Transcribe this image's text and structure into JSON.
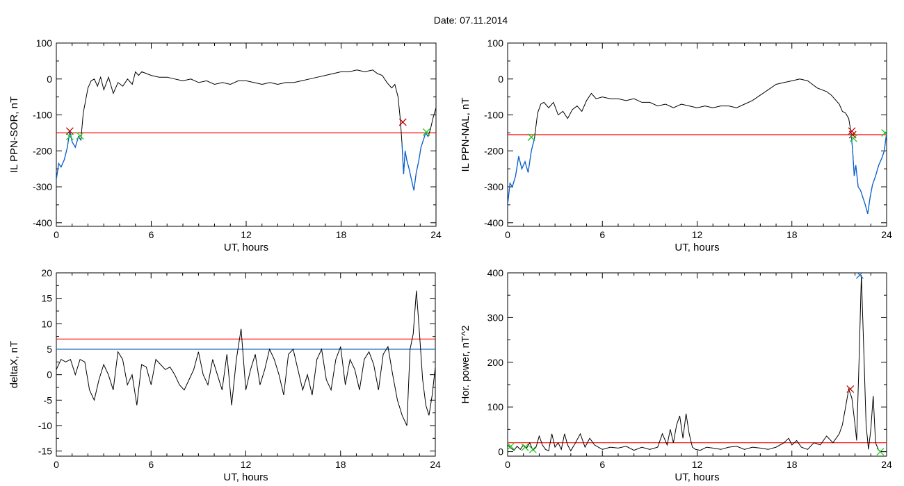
{
  "figure_title": "Date:  07.11.2014",
  "colors": {
    "trace": "#000000",
    "threshold_red": "#ff0000",
    "threshold_blue": "#1f6fbf",
    "event_red": "#c00000",
    "event_green": "#1ec81e",
    "event_blue": "#1f6fbf",
    "disturbed": "#0a64d2"
  },
  "chart_data": [
    {
      "type": "line",
      "id": "il-sor",
      "xlabel": "UT, hours",
      "ylabel": "IL PPN-SOR, nT",
      "xlim": [
        0,
        24
      ],
      "ylim": [
        -410,
        100
      ],
      "xticks": [
        0,
        6,
        12,
        18,
        24
      ],
      "yticks": [
        -400,
        -300,
        -200,
        -100,
        0,
        100
      ],
      "threshold_red": -150,
      "series": [
        {
          "values_x": [
            0,
            0.15,
            0.3,
            0.5,
            0.7,
            0.85,
            1.0,
            1.2,
            1.4,
            1.55,
            1.7,
            1.85,
            2.0,
            2.2,
            2.4,
            2.6,
            2.8,
            3.0,
            3.3,
            3.6,
            3.9,
            4.2,
            4.5,
            4.8,
            5.0,
            5.2,
            5.4,
            5.7,
            6.0,
            6.5,
            7.0,
            7.5,
            8.0,
            8.5,
            9.0,
            9.5,
            10.0,
            10.5,
            11.0,
            11.5,
            12.0,
            12.5,
            13.0,
            13.5,
            14.0,
            14.5,
            15.0,
            15.5,
            16.0,
            16.5,
            17.0,
            17.5,
            18.0,
            18.5,
            19.0,
            19.5,
            20.0,
            20.3,
            20.6,
            20.9,
            21.2,
            21.4,
            21.6,
            21.75,
            21.85,
            21.95,
            22.05,
            22.15,
            22.3,
            22.45,
            22.6,
            22.75,
            22.9,
            23.05,
            23.2,
            23.35,
            23.5,
            23.65,
            23.8,
            24.0
          ],
          "values_y": [
            -280,
            -235,
            -245,
            -225,
            -190,
            -145,
            -175,
            -190,
            -160,
            -170,
            -95,
            -60,
            -25,
            -5,
            0,
            -20,
            5,
            -30,
            5,
            -40,
            -10,
            -20,
            0,
            -15,
            20,
            10,
            20,
            15,
            10,
            5,
            5,
            0,
            -5,
            0,
            -10,
            -5,
            -15,
            -10,
            -15,
            -5,
            -5,
            -10,
            -15,
            -10,
            -15,
            -10,
            -10,
            -5,
            0,
            5,
            10,
            15,
            20,
            20,
            25,
            20,
            25,
            15,
            10,
            -10,
            -25,
            -15,
            -50,
            -115,
            -180,
            -265,
            -200,
            -225,
            -250,
            -280,
            -310,
            -260,
            -230,
            -190,
            -170,
            -150,
            -160,
            -140,
            -110,
            -80
          ]
        }
      ],
      "markers": [
        {
          "x": 0.85,
          "y": -145,
          "kind": "start"
        },
        {
          "x": 21.9,
          "y": -120,
          "kind": "start"
        },
        {
          "x": 0.85,
          "y": -160,
          "kind": "end"
        },
        {
          "x": 1.5,
          "y": -158,
          "kind": "end"
        },
        {
          "x": 23.4,
          "y": -148,
          "kind": "end"
        }
      ]
    },
    {
      "type": "line",
      "id": "il-nal",
      "xlabel": "UT, hours",
      "ylabel": "IL PPN-NAL, nT",
      "xlim": [
        0,
        24
      ],
      "ylim": [
        -410,
        100
      ],
      "xticks": [
        0,
        6,
        12,
        18,
        24
      ],
      "yticks": [
        -400,
        -300,
        -200,
        -100,
        0,
        100
      ],
      "threshold_red": -155,
      "series": [
        {
          "values_x": [
            0,
            0.15,
            0.3,
            0.5,
            0.7,
            0.9,
            1.1,
            1.3,
            1.5,
            1.7,
            1.9,
            2.1,
            2.3,
            2.6,
            2.9,
            3.2,
            3.5,
            3.8,
            4.1,
            4.4,
            4.7,
            5.0,
            5.3,
            5.6,
            6.0,
            6.5,
            7.0,
            7.5,
            8.0,
            8.5,
            9.0,
            9.5,
            10.0,
            10.5,
            11.0,
            11.5,
            12.0,
            12.5,
            13.0,
            13.5,
            14.0,
            14.5,
            15.0,
            15.5,
            16.0,
            16.5,
            17.0,
            17.5,
            18.0,
            18.5,
            19.0,
            19.3,
            19.6,
            19.9,
            20.2,
            20.5,
            20.8,
            21.0,
            21.2,
            21.4,
            21.6,
            21.75,
            21.85,
            21.95,
            22.05,
            22.2,
            22.35,
            22.5,
            22.65,
            22.8,
            22.95,
            23.1,
            23.3,
            23.5,
            23.7,
            23.85,
            24.0
          ],
          "values_y": [
            -350,
            -290,
            -300,
            -270,
            -215,
            -250,
            -230,
            -260,
            -200,
            -165,
            -95,
            -70,
            -65,
            -80,
            -65,
            -100,
            -90,
            -110,
            -85,
            -75,
            -90,
            -60,
            -40,
            -55,
            -50,
            -55,
            -55,
            -60,
            -55,
            -65,
            -65,
            -75,
            -70,
            -80,
            -70,
            -75,
            -80,
            -75,
            -80,
            -75,
            -75,
            -80,
            -70,
            -60,
            -45,
            -30,
            -15,
            -10,
            -5,
            0,
            -5,
            -15,
            -25,
            -30,
            -35,
            -45,
            -60,
            -70,
            -90,
            -95,
            -110,
            -150,
            -200,
            -270,
            -240,
            -300,
            -310,
            -330,
            -350,
            -375,
            -330,
            -295,
            -270,
            -240,
            -220,
            -200,
            -150
          ]
        }
      ],
      "markers": [
        {
          "x": 21.8,
          "y": -145,
          "kind": "start"
        },
        {
          "x": 21.85,
          "y": -155,
          "kind": "start"
        },
        {
          "x": 1.5,
          "y": -162,
          "kind": "end"
        },
        {
          "x": 21.9,
          "y": -165,
          "kind": "end"
        },
        {
          "x": 23.9,
          "y": -150,
          "kind": "end"
        }
      ]
    },
    {
      "type": "line",
      "id": "deltax",
      "xlabel": "UT, hours",
      "ylabel": "deltaX, nT",
      "xlim": [
        0,
        24
      ],
      "ylim": [
        -16,
        20
      ],
      "xticks": [
        0,
        6,
        12,
        18,
        24
      ],
      "yticks": [
        -15,
        -10,
        -5,
        0,
        5,
        10,
        15,
        20
      ],
      "threshold_red": 7,
      "threshold_blue": 5,
      "series": [
        {
          "values_x": [
            0,
            0.3,
            0.6,
            0.9,
            1.2,
            1.5,
            1.8,
            2.1,
            2.4,
            2.7,
            3.0,
            3.3,
            3.6,
            3.9,
            4.2,
            4.5,
            4.8,
            5.1,
            5.4,
            5.7,
            6.0,
            6.3,
            6.6,
            6.9,
            7.2,
            7.5,
            7.8,
            8.1,
            8.4,
            8.7,
            9.0,
            9.3,
            9.6,
            9.9,
            10.2,
            10.5,
            10.8,
            11.1,
            11.4,
            11.7,
            12.0,
            12.3,
            12.6,
            12.9,
            13.2,
            13.5,
            13.8,
            14.1,
            14.4,
            14.7,
            15.0,
            15.3,
            15.6,
            15.9,
            16.2,
            16.5,
            16.8,
            17.1,
            17.4,
            17.7,
            18.0,
            18.3,
            18.6,
            18.9,
            19.2,
            19.5,
            19.8,
            20.1,
            20.4,
            20.7,
            21.0,
            21.3,
            21.6,
            21.9,
            22.2,
            22.4,
            22.6,
            22.8,
            23.0,
            23.2,
            23.4,
            23.6,
            23.8,
            24.0
          ],
          "values_y": [
            1,
            3,
            2.5,
            3,
            0,
            3,
            2.5,
            -3,
            -5,
            -1,
            2,
            0,
            -3,
            4.5,
            3,
            -2,
            0,
            -6,
            2,
            1.5,
            -2,
            3,
            2,
            1,
            1.5,
            0,
            -2,
            -3,
            -1,
            1,
            4.5,
            0,
            -2,
            3,
            0,
            -3,
            4,
            -6,
            3,
            9,
            -3,
            1,
            4,
            -2,
            1,
            5,
            3,
            0,
            -4,
            4,
            5,
            1,
            -3,
            0,
            -4,
            3,
            5,
            -1,
            -3,
            3,
            5.5,
            -2,
            3,
            1,
            -3,
            3,
            4.5,
            2,
            -3,
            4,
            5.5,
            0,
            -5,
            -8,
            -10,
            5,
            8,
            16.5,
            8,
            -1,
            -6,
            -8,
            -4,
            1.5
          ]
        }
      ],
      "markers": []
    },
    {
      "type": "line",
      "id": "hor-power",
      "xlabel": "UT, hours",
      "ylabel": "Hor. power, nT^2",
      "xlim": [
        0,
        24
      ],
      "ylim": [
        -10,
        400
      ],
      "xticks": [
        0,
        6,
        12,
        18,
        24
      ],
      "yticks": [
        0,
        100,
        200,
        300,
        400
      ],
      "threshold_red": 20,
      "series": [
        {
          "values_x": [
            0,
            0.2,
            0.4,
            0.6,
            0.8,
            1.0,
            1.2,
            1.4,
            1.6,
            1.8,
            2.0,
            2.2,
            2.4,
            2.6,
            2.8,
            3.0,
            3.2,
            3.4,
            3.6,
            3.8,
            4.0,
            4.3,
            4.6,
            4.9,
            5.2,
            5.5,
            6.0,
            6.5,
            7.0,
            7.5,
            8.0,
            8.5,
            9.0,
            9.5,
            9.8,
            10.1,
            10.3,
            10.5,
            10.7,
            10.9,
            11.1,
            11.3,
            11.5,
            11.7,
            11.9,
            12.2,
            12.6,
            13.0,
            13.5,
            14.0,
            14.5,
            15.0,
            15.5,
            16.0,
            16.5,
            17.0,
            17.5,
            17.8,
            18.0,
            18.3,
            18.6,
            19.0,
            19.4,
            19.8,
            20.2,
            20.6,
            21.0,
            21.2,
            21.4,
            21.6,
            21.8,
            22.0,
            22.1,
            22.25,
            22.4,
            22.55,
            22.7,
            22.85,
            23.0,
            23.15,
            23.3,
            23.5,
            23.7,
            24.0
          ],
          "values_y": [
            15,
            8,
            3,
            12,
            5,
            15,
            8,
            20,
            3,
            10,
            35,
            15,
            5,
            2,
            40,
            10,
            20,
            5,
            40,
            15,
            2,
            20,
            40,
            10,
            30,
            15,
            5,
            10,
            8,
            12,
            3,
            10,
            5,
            10,
            40,
            15,
            50,
            20,
            60,
            80,
            30,
            85,
            40,
            10,
            5,
            3,
            10,
            8,
            5,
            10,
            12,
            5,
            10,
            8,
            5,
            10,
            20,
            30,
            15,
            25,
            10,
            5,
            20,
            15,
            35,
            20,
            40,
            60,
            100,
            140,
            120,
            60,
            25,
            200,
            395,
            230,
            60,
            5,
            50,
            125,
            20,
            3,
            0,
            0
          ]
        }
      ],
      "markers": [
        {
          "x": 21.7,
          "y": 140,
          "kind": "start"
        },
        {
          "x": 22.3,
          "y": 395,
          "kind": "peak"
        },
        {
          "x": 0.2,
          "y": 12,
          "kind": "end"
        },
        {
          "x": 1.1,
          "y": 10,
          "kind": "end"
        },
        {
          "x": 1.6,
          "y": 5,
          "kind": "end"
        },
        {
          "x": 23.6,
          "y": 0,
          "kind": "end"
        }
      ]
    }
  ]
}
